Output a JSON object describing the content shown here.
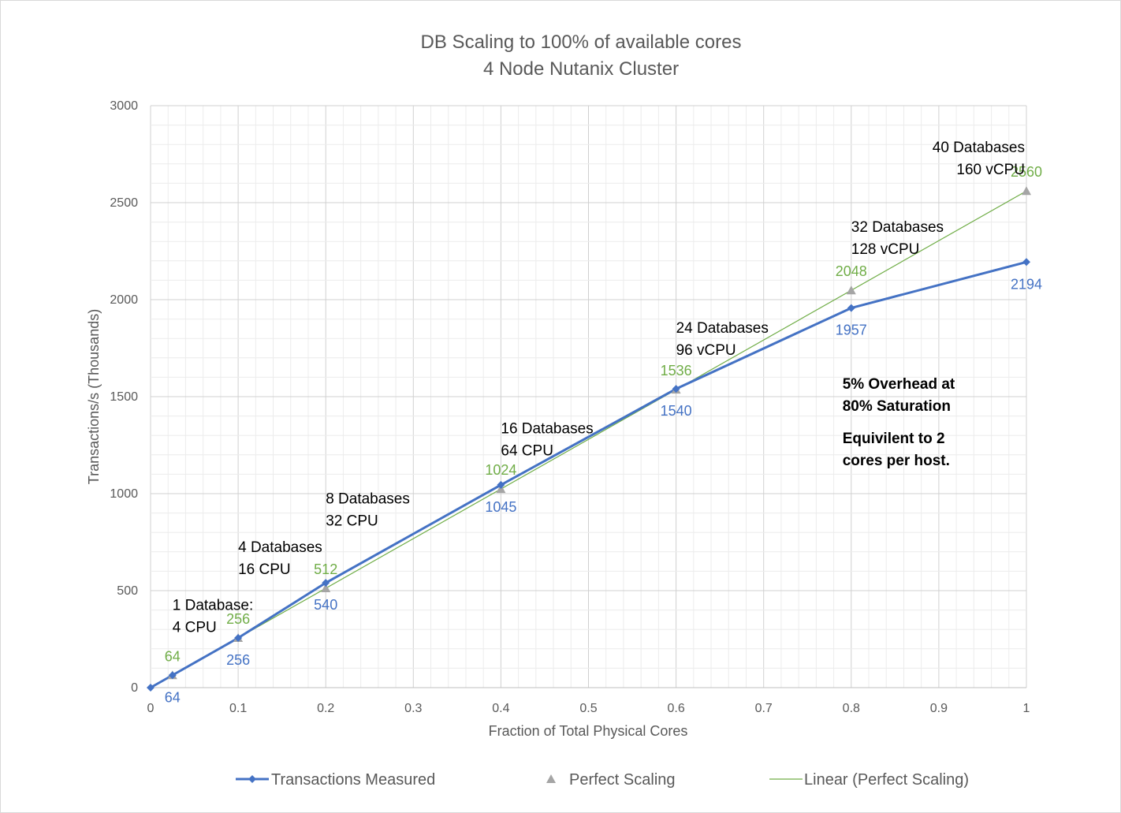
{
  "chart_data": {
    "type": "line",
    "title": "DB Scaling to 100% of available cores",
    "subtitle": "4 Node Nutanix Cluster",
    "xlabel": "Fraction of Total Physical Cores",
    "ylabel": "Transactions/s (Thousands)",
    "xlim": [
      0,
      1
    ],
    "ylim": [
      0,
      3000
    ],
    "x_ticks": [
      "0",
      "0.1",
      "0.2",
      "0.3",
      "0.4",
      "0.5",
      "0.6",
      "0.7",
      "0.8",
      "0.9",
      "1"
    ],
    "y_ticks": [
      "0",
      "500",
      "1000",
      "1500",
      "2000",
      "2500",
      "3000"
    ],
    "grid": true,
    "legend_position": "bottom",
    "series": [
      {
        "name": "Transactions Measured",
        "color": "#4472c4",
        "marker": "diamond",
        "x": [
          0,
          0.025,
          0.1,
          0.2,
          0.4,
          0.6,
          0.8,
          1
        ],
        "values": [
          0,
          64,
          256,
          540,
          1045,
          1540,
          1957,
          2194
        ],
        "labels": [
          "",
          "64",
          "256",
          "540",
          "1045",
          "1540",
          "1957",
          "2194"
        ]
      },
      {
        "name": "Perfect Scaling",
        "color": "#a5a5a5",
        "marker": "triangle",
        "x": [
          0.025,
          0.1,
          0.2,
          0.4,
          0.6,
          0.8,
          1
        ],
        "values": [
          64,
          256,
          512,
          1024,
          1536,
          2048,
          2560
        ],
        "labels": [
          "64",
          "256",
          "512",
          "1024",
          "1536",
          "2048",
          "2560"
        ],
        "label_color": "#70ad47"
      },
      {
        "name": "Linear (Perfect Scaling)",
        "color": "#70ad47",
        "marker": "none",
        "x": [
          0,
          1
        ],
        "values": [
          0,
          2560
        ]
      }
    ],
    "annotations": [
      {
        "x": 0.025,
        "y": 400,
        "lines": [
          "1 Database:",
          "4 CPU"
        ]
      },
      {
        "x": 0.1,
        "y": 700,
        "lines": [
          "4 Databases",
          "16 CPU"
        ]
      },
      {
        "x": 0.2,
        "y": 950,
        "lines": [
          "8 Databases",
          "32 CPU"
        ]
      },
      {
        "x": 0.4,
        "y": 1310,
        "lines": [
          "16 Databases",
          "64 CPU"
        ]
      },
      {
        "x": 0.6,
        "y": 1830,
        "lines": [
          "24 Databases",
          "96 vCPU"
        ]
      },
      {
        "x": 0.8,
        "y": 2350,
        "lines": [
          "32 Databases",
          "128 vCPU"
        ]
      },
      {
        "x": 1,
        "y": 2760,
        "lines": [
          "40 Databases",
          "160 vCPU"
        ]
      },
      {
        "x": 0.79,
        "y": 1540,
        "bold": true,
        "lines": [
          "5% Overhead at",
          "80% Saturation"
        ]
      },
      {
        "x": 0.79,
        "y": 1260,
        "bold": true,
        "lines": [
          "Equivilent to 2",
          "cores per host."
        ]
      }
    ]
  }
}
